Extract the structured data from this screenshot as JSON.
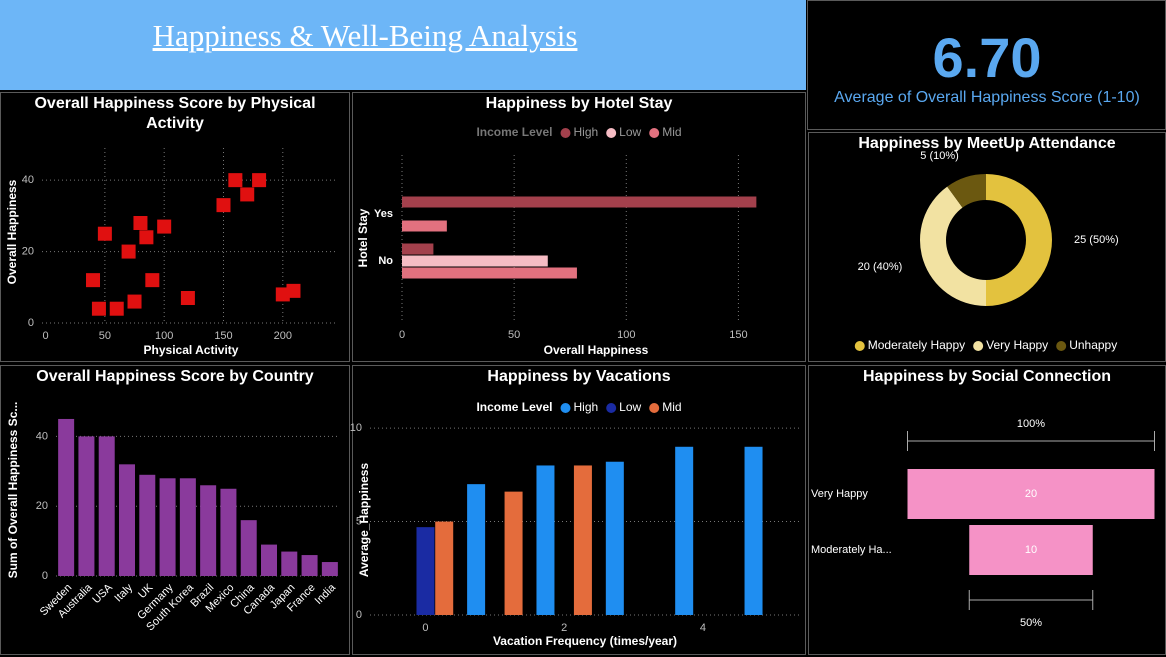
{
  "header": {
    "title": "Happiness & Well-Being Analysis"
  },
  "kpi": {
    "value": "6.70",
    "label": "Average of Overall Happiness Score (1-10)"
  },
  "chart_data": [
    {
      "type": "scatter",
      "title": "Overall Happiness Score by Physical Activity",
      "x_label": "Physical Activity",
      "y_label": "Overall Happiness",
      "x": [
        40,
        45,
        50,
        60,
        70,
        75,
        80,
        85,
        90,
        100,
        120,
        150,
        160,
        170,
        180,
        200,
        209
      ],
      "values": [
        12,
        4,
        25,
        4,
        20,
        6,
        28,
        24,
        12,
        27,
        7,
        33,
        40,
        36,
        40,
        8,
        9
      ],
      "color": "#e01010",
      "xlim": [
        -3,
        244
      ],
      "xticks": [
        0,
        50,
        100,
        150,
        200
      ],
      "ylim": [
        0,
        49
      ],
      "yticks": [
        0,
        20,
        40
      ],
      "grid": true
    },
    {
      "type": "bar",
      "orientation": "horizontal",
      "title": "Happiness by Hotel Stay",
      "x_label": "Overall Happiness",
      "y_label": "Hotel Stay",
      "legend_title": "Income Level",
      "categories": [
        "Yes",
        "No"
      ],
      "series": [
        {
          "name": "High",
          "color": "#a3404c",
          "values": [
            158,
            14
          ]
        },
        {
          "name": "Low",
          "color": "#f6bcc4",
          "values": [
            null,
            65
          ]
        },
        {
          "name": "Mid",
          "color": "#e2717f",
          "values": [
            20,
            78
          ]
        }
      ],
      "xlim": [
        0,
        173
      ],
      "xticks": [
        0,
        50,
        100,
        150
      ],
      "grid": true
    },
    {
      "type": "donut",
      "title": "Happiness by MeetUp Attendance",
      "categories": [
        "Moderately Happy",
        "Very Happy",
        "Unhappy"
      ],
      "values": [
        25,
        20,
        5
      ],
      "value_labels": [
        "25 (50%)",
        "20 (40%)",
        "5 (10%)"
      ],
      "colors": [
        "#e3c23e",
        "#f2e2a2",
        "#6b5810"
      ]
    },
    {
      "type": "bar",
      "title": "Overall Happiness Score by Country",
      "y_label": "Sum of Overall Happiness Sc...",
      "categories": [
        "Sweden",
        "Australia",
        "USA",
        "Italy",
        "UK",
        "Germany",
        "South Korea",
        "Brazil",
        "Mexico",
        "China",
        "Canada",
        "Japan",
        "France",
        "India"
      ],
      "values": [
        45,
        40,
        40,
        32,
        29,
        28,
        28,
        26,
        25,
        16,
        9,
        7,
        6,
        4
      ],
      "color": "#8a3a9c",
      "ylim": [
        0,
        49
      ],
      "yticks": [
        0,
        20,
        40
      ],
      "grid": true
    },
    {
      "type": "bar",
      "title": "Happiness by Vacations",
      "x_label": "Vacation Frequency (times/year)",
      "y_label": "Average_Happiness",
      "legend_title": "Income Level",
      "x": [
        0,
        1,
        2,
        3,
        4,
        5
      ],
      "series": [
        {
          "name": "High",
          "color": "#1f8ef1",
          "values": [
            null,
            7.0,
            8.0,
            8.2,
            9.0,
            9.0
          ]
        },
        {
          "name": "Low",
          "color": "#1a2ba3",
          "values": [
            4.7,
            null,
            null,
            null,
            null,
            null
          ]
        },
        {
          "name": "Mid",
          "color": "#e46c3c",
          "values": [
            5.0,
            6.6,
            8.0,
            null,
            null,
            null
          ]
        }
      ],
      "xlim": [
        -0.8,
        5.4
      ],
      "xticks": [
        0,
        2,
        4
      ],
      "ylim": [
        0,
        10.7
      ],
      "yticks": [
        0,
        5,
        10
      ],
      "grid": true
    },
    {
      "type": "funnel",
      "title": "Happiness by Social Connection",
      "categories": [
        "Very Happy",
        "Moderately Ha..."
      ],
      "values": [
        20,
        10
      ],
      "color": "#f592c6",
      "top_label": "100%",
      "bottom_label": "50%"
    }
  ]
}
